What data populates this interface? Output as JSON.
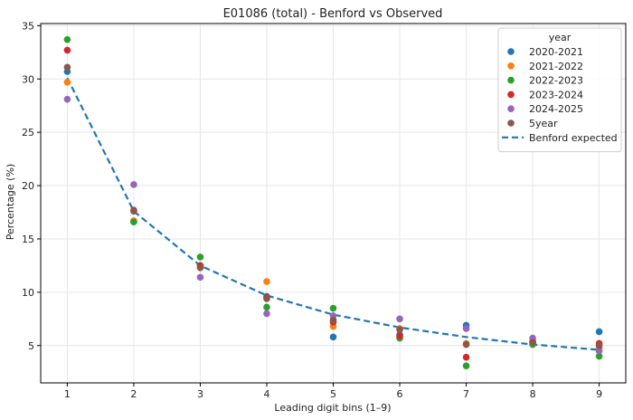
{
  "chart_data": {
    "type": "scatter",
    "title": "E01086 (total) - Benford vs Observed",
    "xlabel": "Leading digit bins (1–9)",
    "ylabel": "Percentage (%)",
    "x": [
      1,
      2,
      3,
      4,
      5,
      6,
      7,
      8,
      9
    ],
    "xlim": [
      0.6,
      9.4
    ],
    "ylim": [
      1.5,
      35.2
    ],
    "xticks": [
      1,
      2,
      3,
      4,
      5,
      6,
      7,
      8,
      9
    ],
    "yticks": [
      5,
      10,
      15,
      20,
      25,
      30,
      35
    ],
    "grid": true,
    "legend": {
      "title": "year",
      "position": "top-right"
    },
    "series": [
      {
        "name": "2020-2021",
        "color": "#1f77b4",
        "values": [
          30.7,
          16.6,
          12.5,
          9.6,
          5.8,
          6.0,
          6.9,
          5.3,
          6.3
        ]
      },
      {
        "name": "2021-2022",
        "color": "#ff7f0e",
        "values": [
          29.7,
          16.7,
          12.5,
          11.0,
          6.8,
          6.6,
          5.2,
          5.3,
          4.8
        ]
      },
      {
        "name": "2022-2023",
        "color": "#2ca02c",
        "values": [
          33.7,
          16.6,
          13.3,
          8.6,
          8.5,
          5.7,
          3.1,
          5.1,
          4.0
        ]
      },
      {
        "name": "2023-2024",
        "color": "#d62728",
        "values": [
          32.7,
          17.7,
          12.5,
          9.5,
          7.2,
          5.9,
          3.9,
          5.4,
          5.2
        ]
      },
      {
        "name": "2024-2025",
        "color": "#9467bd",
        "values": [
          28.1,
          20.1,
          11.4,
          8.0,
          7.8,
          7.5,
          6.6,
          5.7,
          4.5
        ]
      },
      {
        "name": "5year",
        "color": "#8c564b",
        "values": [
          31.1,
          17.6,
          12.3,
          9.4,
          7.4,
          6.5,
          5.1,
          5.3,
          5.0
        ]
      }
    ],
    "expected": {
      "name": "Benford expected",
      "color": "#1f77b4",
      "style": "dashed",
      "values": [
        30.1,
        17.6,
        12.5,
        9.7,
        7.9,
        6.7,
        5.8,
        5.1,
        4.6
      ]
    }
  }
}
